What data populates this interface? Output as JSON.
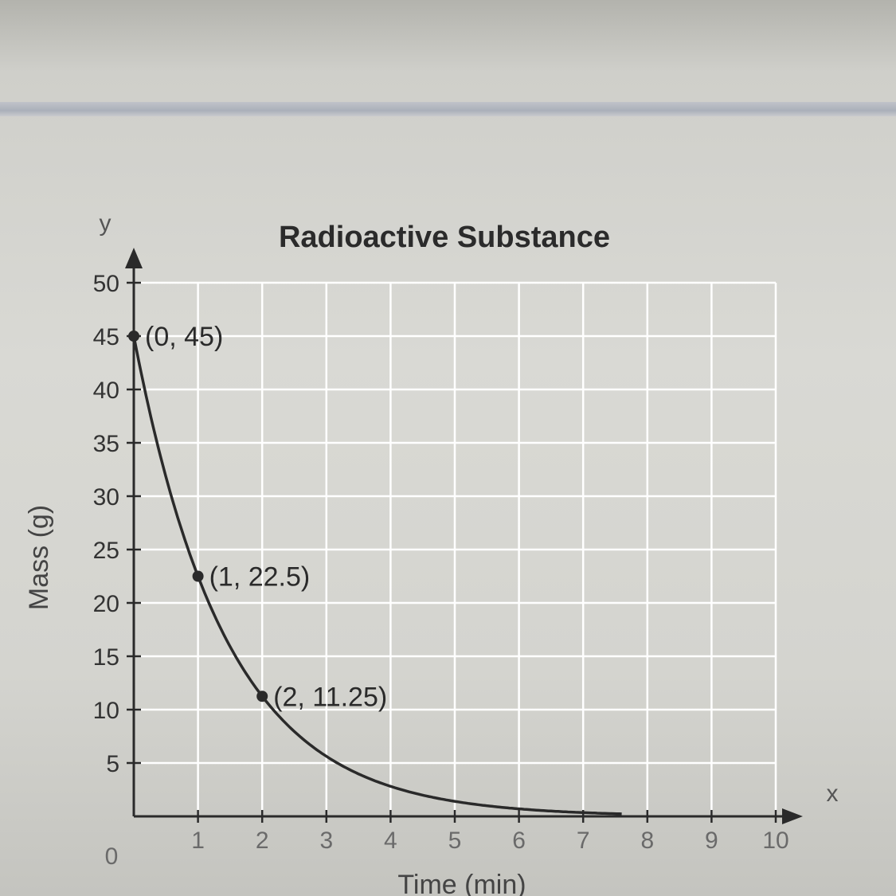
{
  "chart_data": {
    "type": "line",
    "title": "Radioactive Substance",
    "xlabel": "Time (min)",
    "ylabel": "Mass (g)",
    "x_axis_letter": "x",
    "y_axis_letter": "y",
    "xlim": [
      0,
      10
    ],
    "ylim": [
      0,
      50
    ],
    "x_ticks": [
      0,
      1,
      2,
      3,
      4,
      5,
      6,
      7,
      8,
      9,
      10
    ],
    "y_ticks": [
      5,
      10,
      15,
      20,
      25,
      30,
      35,
      40,
      45,
      50
    ],
    "grid": true,
    "function": "y = 45 * 0.5^x",
    "points": [
      {
        "x": 0,
        "y": 45,
        "label": "(0, 45)"
      },
      {
        "x": 1,
        "y": 22.5,
        "label": "(1, 22.5)"
      },
      {
        "x": 2,
        "y": 11.25,
        "label": "(2, 11.25)"
      }
    ],
    "colors": {
      "line": "#2a2a2a",
      "grid": "#ffffff"
    }
  }
}
